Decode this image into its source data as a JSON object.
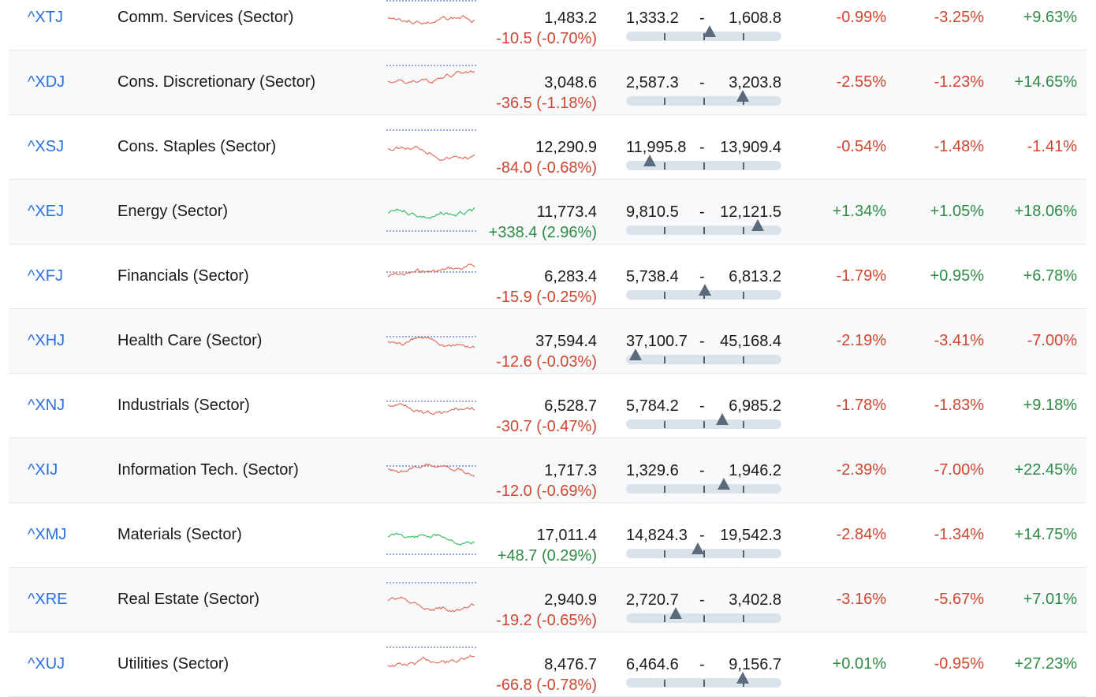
{
  "colors": {
    "negative": "#d0452f",
    "positive": "#2e8b45",
    "link": "#2a6fdb",
    "sparkline_red": "#e07060",
    "sparkline_green": "#3bbf63",
    "baseline_dotted": "#2f56b0"
  },
  "rows": [
    {
      "symbol": "^XTJ",
      "name": "Comm. Services (Sector)",
      "price": "1,483.2",
      "change": "-10.5 (-0.70%)",
      "change_dir": "neg",
      "range_low": "1,333.2",
      "range_high": "1,608.8",
      "range_pos": 0.54,
      "p1": "-0.99%",
      "p1_dir": "neg",
      "p2": "-3.25%",
      "p2_dir": "neg",
      "p3": "+9.63%",
      "p3_dir": "pos",
      "spark_color": "red"
    },
    {
      "symbol": "^XDJ",
      "name": "Cons. Discretionary (Sector)",
      "price": "3,048.6",
      "change": "-36.5 (-1.18%)",
      "change_dir": "neg",
      "range_low": "2,587.3",
      "range_high": "3,203.8",
      "range_pos": 0.75,
      "p1": "-2.55%",
      "p1_dir": "neg",
      "p2": "-1.23%",
      "p2_dir": "neg",
      "p3": "+14.65%",
      "p3_dir": "pos",
      "spark_color": "red"
    },
    {
      "symbol": "^XSJ",
      "name": "Cons. Staples (Sector)",
      "price": "12,290.9",
      "change": "-84.0 (-0.68%)",
      "change_dir": "neg",
      "range_low": "11,995.8",
      "range_high": "13,909.4",
      "range_pos": 0.15,
      "p1": "-0.54%",
      "p1_dir": "neg",
      "p2": "-1.48%",
      "p2_dir": "neg",
      "p3": "-1.41%",
      "p3_dir": "neg",
      "spark_color": "red"
    },
    {
      "symbol": "^XEJ",
      "name": "Energy (Sector)",
      "price": "11,773.4",
      "change": "+338.4 (2.96%)",
      "change_dir": "pos",
      "range_low": "9,810.5",
      "range_high": "12,121.5",
      "range_pos": 0.85,
      "p1": "+1.34%",
      "p1_dir": "pos",
      "p2": "+1.05%",
      "p2_dir": "pos",
      "p3": "+18.06%",
      "p3_dir": "pos",
      "spark_color": "green"
    },
    {
      "symbol": "^XFJ",
      "name": "Financials (Sector)",
      "price": "6,283.4",
      "change": "-15.9 (-0.25%)",
      "change_dir": "neg",
      "range_low": "5,738.4",
      "range_high": "6,813.2",
      "range_pos": 0.51,
      "p1": "-1.79%",
      "p1_dir": "neg",
      "p2": "+0.95%",
      "p2_dir": "pos",
      "p3": "+6.78%",
      "p3_dir": "pos",
      "spark_color": "mixed"
    },
    {
      "symbol": "^XHJ",
      "name": "Health Care (Sector)",
      "price": "37,594.4",
      "change": "-12.6 (-0.03%)",
      "change_dir": "neg",
      "range_low": "37,100.7",
      "range_high": "45,168.4",
      "range_pos": 0.06,
      "p1": "-2.19%",
      "p1_dir": "neg",
      "p2": "-3.41%",
      "p2_dir": "neg",
      "p3": "-7.00%",
      "p3_dir": "neg",
      "spark_color": "mixed"
    },
    {
      "symbol": "^XNJ",
      "name": "Industrials (Sector)",
      "price": "6,528.7",
      "change": "-30.7 (-0.47%)",
      "change_dir": "neg",
      "range_low": "5,784.2",
      "range_high": "6,985.2",
      "range_pos": 0.62,
      "p1": "-1.78%",
      "p1_dir": "neg",
      "p2": "-1.83%",
      "p2_dir": "neg",
      "p3": "+9.18%",
      "p3_dir": "pos",
      "spark_color": "mixed"
    },
    {
      "symbol": "^XIJ",
      "name": "Information Tech. (Sector)",
      "price": "1,717.3",
      "change": "-12.0 (-0.69%)",
      "change_dir": "neg",
      "range_low": "1,329.6",
      "range_high": "1,946.2",
      "range_pos": 0.63,
      "p1": "-2.39%",
      "p1_dir": "neg",
      "p2": "-7.00%",
      "p2_dir": "neg",
      "p3": "+22.45%",
      "p3_dir": "pos",
      "spark_color": "mixed"
    },
    {
      "symbol": "^XMJ",
      "name": "Materials (Sector)",
      "price": "17,011.4",
      "change": "+48.7 (0.29%)",
      "change_dir": "pos",
      "range_low": "14,824.3",
      "range_high": "19,542.3",
      "range_pos": 0.46,
      "p1": "-2.84%",
      "p1_dir": "neg",
      "p2": "-1.34%",
      "p2_dir": "neg",
      "p3": "+14.75%",
      "p3_dir": "pos",
      "spark_color": "green"
    },
    {
      "symbol": "^XRE",
      "name": "Real Estate (Sector)",
      "price": "2,940.9",
      "change": "-19.2 (-0.65%)",
      "change_dir": "neg",
      "range_low": "2,720.7",
      "range_high": "3,402.8",
      "range_pos": 0.32,
      "p1": "-3.16%",
      "p1_dir": "neg",
      "p2": "-5.67%",
      "p2_dir": "neg",
      "p3": "+7.01%",
      "p3_dir": "pos",
      "spark_color": "red"
    },
    {
      "symbol": "^XUJ",
      "name": "Utilities (Sector)",
      "price": "8,476.7",
      "change": "-66.8 (-0.78%)",
      "change_dir": "neg",
      "range_low": "6,464.6",
      "range_high": "9,156.7",
      "range_pos": 0.75,
      "p1": "+0.01%",
      "p1_dir": "pos",
      "p2": "-0.95%",
      "p2_dir": "neg",
      "p3": "+27.23%",
      "p3_dir": "pos",
      "spark_color": "red"
    }
  ]
}
